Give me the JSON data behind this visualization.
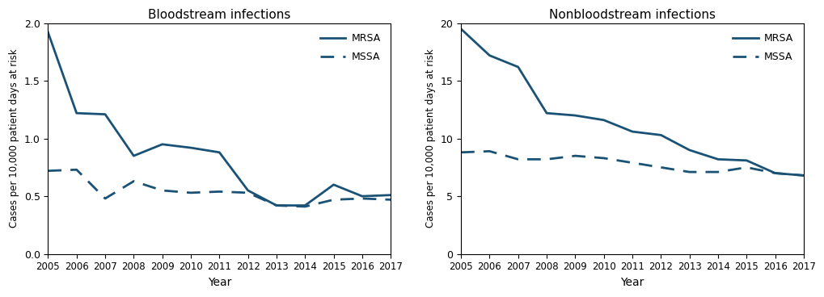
{
  "years": [
    2005,
    2006,
    2007,
    2008,
    2009,
    2010,
    2011,
    2012,
    2013,
    2014,
    2015,
    2016,
    2017
  ],
  "blood_mrsa": [
    1.92,
    1.22,
    1.21,
    0.85,
    0.95,
    0.92,
    0.88,
    0.55,
    0.42,
    0.42,
    0.6,
    0.5,
    0.51
  ],
  "blood_mssa": [
    0.72,
    0.73,
    0.48,
    0.63,
    0.55,
    0.53,
    0.54,
    0.53,
    0.42,
    0.41,
    0.47,
    0.48,
    0.47
  ],
  "nonblood_mrsa": [
    19.5,
    17.2,
    16.2,
    12.2,
    12.0,
    11.6,
    10.6,
    10.3,
    9.0,
    8.2,
    8.1,
    7.0,
    6.8
  ],
  "nonblood_mssa": [
    8.8,
    8.9,
    8.2,
    8.2,
    8.5,
    8.3,
    7.9,
    7.5,
    7.1,
    7.1,
    7.5,
    7.0,
    6.8
  ],
  "line_color": "#1a5276",
  "title_blood": "Bloodstream infections",
  "title_nonblood": "Nonbloodstream infections",
  "ylabel": "Cases per 10,000 patient days at risk",
  "xlabel": "Year",
  "legend_solid": "MRSA",
  "legend_dashed": "MSSA",
  "ylim_blood": [
    0,
    2.0
  ],
  "yticks_blood": [
    0,
    0.5,
    1.0,
    1.5,
    2.0
  ],
  "ylim_nonblood": [
    0,
    20
  ],
  "yticks_nonblood": [
    0,
    5,
    10,
    15,
    20
  ]
}
